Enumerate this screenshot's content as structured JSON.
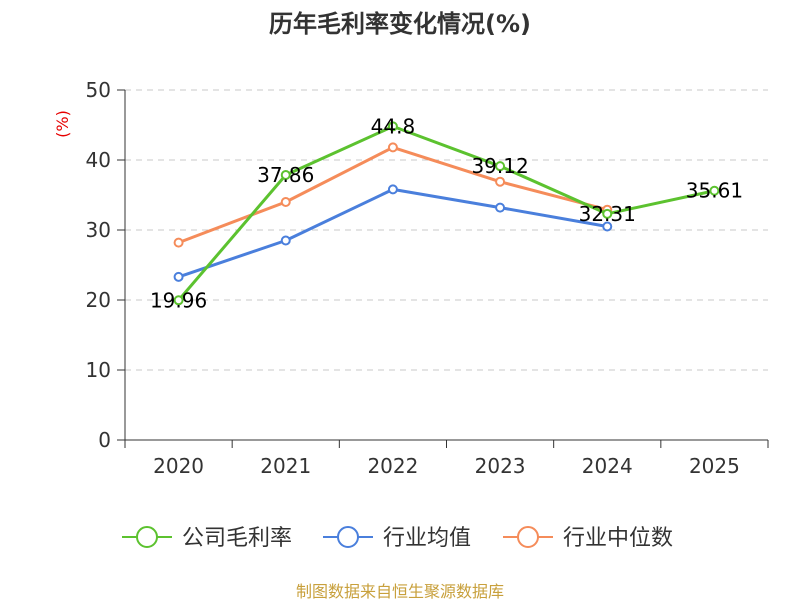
{
  "chart_data": {
    "type": "line",
    "title": "历年毛利率变化情况(%)",
    "ylabel": "(%)",
    "categories": [
      "2020",
      "2021",
      "2022",
      "2023",
      "2024",
      "2025"
    ],
    "ylim": [
      0,
      50
    ],
    "yticks": [
      0,
      10,
      20,
      30,
      40,
      50
    ],
    "grid": true,
    "legend_position": "bottom",
    "series": [
      {
        "name": "公司毛利率",
        "color": "#5cc22f",
        "values": [
          19.96,
          37.86,
          44.8,
          39.12,
          32.31,
          35.61
        ],
        "labels": [
          "19.96",
          "37.86",
          "44.8",
          "39.12",
          "32.31",
          "35.61"
        ]
      },
      {
        "name": "行业均值",
        "color": "#4a7fdc",
        "values": [
          23.3,
          28.5,
          35.8,
          33.2,
          30.5,
          null
        ]
      },
      {
        "name": "行业中位数",
        "color": "#f58c5a",
        "values": [
          28.2,
          34.0,
          41.8,
          36.9,
          32.9,
          null
        ]
      }
    ]
  },
  "footer": {
    "source": "制图数据来自恒生聚源数据库"
  }
}
